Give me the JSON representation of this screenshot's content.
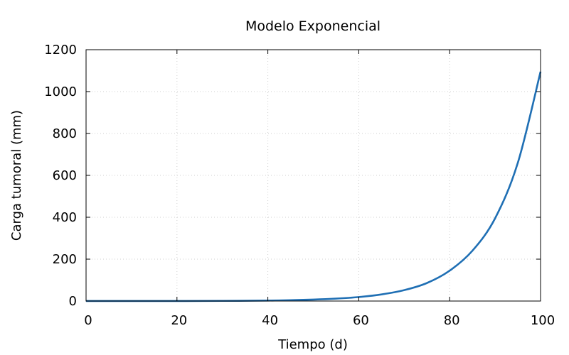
{
  "chart_data": {
    "type": "line",
    "title": "Modelo Exponencial",
    "xlabel": "Tiempo (d)",
    "ylabel": "Carga tumoral (mm)",
    "xlim": [
      0,
      100
    ],
    "ylim": [
      0,
      1200
    ],
    "grid": true,
    "x_ticks": [
      "0",
      "20",
      "40",
      "60",
      "80",
      "100"
    ],
    "y_ticks": [
      "0",
      "200",
      "400",
      "600",
      "800",
      "1000",
      "1200"
    ],
    "series": [
      {
        "color": "#1f6fb4",
        "x": [
          0,
          10,
          20,
          30,
          40,
          45,
          50,
          55,
          60,
          65,
          70,
          75,
          80,
          85,
          90,
          95,
          100
        ],
        "y": [
          0.1,
          0.1,
          0.3,
          0.8,
          2.3,
          4.2,
          6.9,
          11.5,
          19,
          31.5,
          52,
          86,
          145,
          240,
          395,
          660,
          1095
        ]
      }
    ]
  }
}
